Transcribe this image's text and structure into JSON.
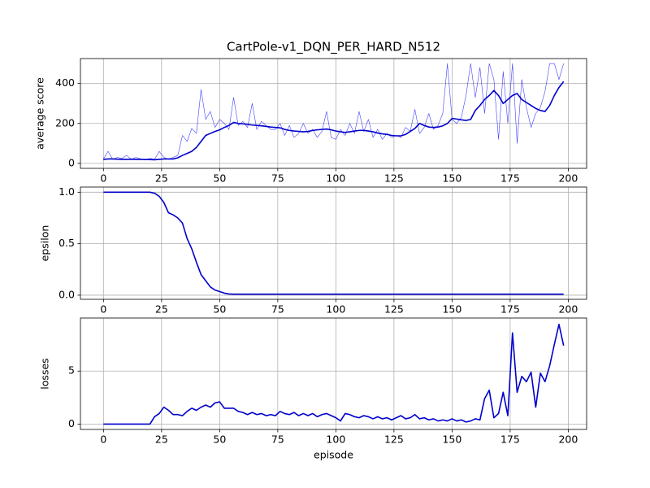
{
  "chart_data": [
    {
      "type": "line",
      "title": "CartPole-v1_DQN_PER_HARD_N512",
      "ylabel": "average score",
      "x": [
        0,
        2,
        4,
        6,
        8,
        10,
        12,
        14,
        16,
        18,
        20,
        22,
        24,
        26,
        28,
        30,
        32,
        34,
        36,
        38,
        40,
        42,
        44,
        46,
        48,
        50,
        52,
        54,
        56,
        58,
        60,
        62,
        64,
        66,
        68,
        70,
        72,
        74,
        76,
        78,
        80,
        82,
        84,
        86,
        88,
        90,
        92,
        94,
        96,
        98,
        100,
        102,
        104,
        106,
        108,
        110,
        112,
        114,
        116,
        118,
        120,
        122,
        124,
        126,
        128,
        130,
        132,
        134,
        136,
        138,
        140,
        142,
        144,
        146,
        148,
        150,
        152,
        154,
        156,
        158,
        160,
        162,
        164,
        166,
        168,
        170,
        172,
        174,
        176,
        178,
        180,
        182,
        184,
        186,
        188,
        190,
        192,
        194,
        196,
        198
      ],
      "series": [
        {
          "color": "#0000ff",
          "linewidth": 0.6,
          "opacity": 0.75,
          "values": [
            22,
            60,
            20,
            30,
            25,
            40,
            20,
            30,
            22,
            18,
            25,
            20,
            60,
            30,
            20,
            30,
            40,
            140,
            110,
            175,
            150,
            370,
            220,
            260,
            180,
            220,
            200,
            170,
            330,
            190,
            210,
            180,
            300,
            170,
            210,
            190,
            170,
            170,
            200,
            140,
            190,
            130,
            150,
            200,
            150,
            170,
            130,
            160,
            260,
            130,
            120,
            170,
            140,
            200,
            150,
            260,
            160,
            220,
            130,
            170,
            120,
            150,
            130,
            140,
            130,
            180,
            160,
            270,
            150,
            180,
            250,
            170,
            190,
            250,
            500,
            220,
            200,
            230,
            340,
            500,
            330,
            480,
            250,
            500,
            420,
            120,
            460,
            200,
            500,
            100,
            420,
            280,
            180,
            250,
            280,
            360,
            500,
            500,
            420,
            500
          ]
        },
        {
          "color": "#0000cc",
          "linewidth": 1.6,
          "opacity": 1,
          "values": [
            20,
            22,
            22,
            21,
            20,
            20,
            21,
            20,
            20,
            19,
            19,
            18,
            20,
            22,
            22,
            22,
            28,
            40,
            50,
            60,
            80,
            110,
            140,
            150,
            160,
            168,
            180,
            190,
            205,
            200,
            198,
            195,
            192,
            190,
            188,
            185,
            182,
            180,
            178,
            170,
            165,
            162,
            160,
            158,
            160,
            165,
            168,
            170,
            172,
            168,
            162,
            158,
            155,
            158,
            162,
            165,
            165,
            162,
            158,
            152,
            148,
            145,
            140,
            138,
            138,
            145,
            160,
            175,
            200,
            190,
            182,
            180,
            182,
            188,
            200,
            225,
            222,
            218,
            215,
            220,
            265,
            290,
            320,
            340,
            365,
            340,
            300,
            320,
            340,
            350,
            320,
            305,
            290,
            275,
            265,
            260,
            290,
            340,
            380,
            410
          ]
        }
      ],
      "xlim": [
        -9.9,
        207.9
      ],
      "xticks": [
        0,
        25,
        50,
        75,
        100,
        125,
        150,
        175,
        200
      ],
      "ylim": [
        -25,
        525
      ],
      "yticks": [
        0,
        200,
        400
      ],
      "grid": true
    },
    {
      "type": "line",
      "ylabel": "epsilon",
      "x": [
        0,
        2,
        4,
        6,
        8,
        10,
        12,
        14,
        16,
        18,
        20,
        22,
        24,
        26,
        28,
        30,
        32,
        34,
        36,
        38,
        40,
        42,
        44,
        46,
        48,
        50,
        52,
        54,
        56,
        58,
        60,
        62,
        64,
        66,
        68,
        70,
        72,
        74,
        76,
        78,
        80,
        82,
        84,
        86,
        88,
        90,
        92,
        94,
        96,
        98,
        100,
        102,
        104,
        106,
        108,
        110,
        112,
        114,
        116,
        118,
        120,
        122,
        124,
        126,
        128,
        130,
        132,
        134,
        136,
        138,
        140,
        142,
        144,
        146,
        148,
        150,
        152,
        154,
        156,
        158,
        160,
        162,
        164,
        166,
        168,
        170,
        172,
        174,
        176,
        178,
        180,
        182,
        184,
        186,
        188,
        190,
        192,
        194,
        196,
        198
      ],
      "series": [
        {
          "color": "#0000cc",
          "linewidth": 1.6,
          "opacity": 1,
          "values": [
            1,
            1,
            1,
            1,
            1,
            1,
            1,
            1,
            1,
            1,
            1,
            0.99,
            0.96,
            0.9,
            0.8,
            0.78,
            0.75,
            0.7,
            0.55,
            0.45,
            0.32,
            0.2,
            0.14,
            0.08,
            0.05,
            0.035,
            0.02,
            0.012,
            0.01,
            0.01,
            0.01,
            0.01,
            0.01,
            0.01,
            0.01,
            0.01,
            0.01,
            0.01,
            0.01,
            0.01,
            0.01,
            0.01,
            0.01,
            0.01,
            0.01,
            0.01,
            0.01,
            0.01,
            0.01,
            0.01,
            0.01,
            0.01,
            0.01,
            0.01,
            0.01,
            0.01,
            0.01,
            0.01,
            0.01,
            0.01,
            0.01,
            0.01,
            0.01,
            0.01,
            0.01,
            0.01,
            0.01,
            0.01,
            0.01,
            0.01,
            0.01,
            0.01,
            0.01,
            0.01,
            0.01,
            0.01,
            0.01,
            0.01,
            0.01,
            0.01,
            0.01,
            0.01,
            0.01,
            0.01,
            0.01,
            0.01,
            0.01,
            0.01,
            0.01,
            0.01,
            0.01,
            0.01,
            0.01,
            0.01,
            0.01,
            0.01,
            0.01,
            0.01,
            0.01,
            0.01
          ]
        }
      ],
      "xlim": [
        -9.9,
        207.9
      ],
      "xticks": [
        0,
        25,
        50,
        75,
        100,
        125,
        150,
        175,
        200
      ],
      "ylim": [
        -0.04,
        1.05
      ],
      "yticks": [
        {
          "value": 0,
          "label": "0.0"
        },
        0.5,
        {
          "value": 1,
          "label": "1.0"
        }
      ],
      "grid": true
    },
    {
      "type": "line",
      "ylabel": "losses",
      "xlabel": "episode",
      "x": [
        0,
        2,
        4,
        6,
        8,
        10,
        12,
        14,
        16,
        18,
        20,
        22,
        24,
        26,
        28,
        30,
        32,
        34,
        36,
        38,
        40,
        42,
        44,
        46,
        48,
        50,
        52,
        54,
        56,
        58,
        60,
        62,
        64,
        66,
        68,
        70,
        72,
        74,
        76,
        78,
        80,
        82,
        84,
        86,
        88,
        90,
        92,
        94,
        96,
        98,
        100,
        102,
        104,
        106,
        108,
        110,
        112,
        114,
        116,
        118,
        120,
        122,
        124,
        126,
        128,
        130,
        132,
        134,
        136,
        138,
        140,
        142,
        144,
        146,
        148,
        150,
        152,
        154,
        156,
        158,
        160,
        162,
        164,
        166,
        168,
        170,
        172,
        174,
        176,
        178,
        180,
        182,
        184,
        186,
        188,
        190,
        192,
        194,
        196,
        198
      ],
      "series": [
        {
          "color": "#0000cc",
          "linewidth": 1.6,
          "opacity": 1,
          "values": [
            0,
            0,
            0,
            0,
            0,
            0,
            0,
            0,
            0,
            0,
            0,
            0.7,
            1.0,
            1.6,
            1.3,
            0.9,
            0.9,
            0.8,
            1.2,
            1.5,
            1.3,
            1.6,
            1.8,
            1.6,
            2.0,
            2.1,
            1.5,
            1.5,
            1.5,
            1.2,
            1.1,
            0.9,
            1.1,
            0.9,
            1.0,
            0.8,
            0.9,
            0.8,
            1.2,
            1.0,
            0.9,
            1.1,
            0.8,
            1.0,
            0.8,
            1.0,
            0.7,
            0.9,
            1.0,
            0.8,
            0.6,
            0.3,
            1.0,
            0.9,
            0.7,
            0.6,
            0.8,
            0.7,
            0.5,
            0.7,
            0.5,
            0.6,
            0.4,
            0.6,
            0.8,
            0.5,
            0.6,
            0.9,
            0.5,
            0.6,
            0.4,
            0.5,
            0.3,
            0.4,
            0.3,
            0.5,
            0.3,
            0.4,
            0.2,
            0.3,
            0.5,
            0.4,
            2.4,
            3.2,
            0.6,
            1.0,
            3.0,
            0.8,
            8.6,
            3.0,
            4.5,
            4.0,
            4.9,
            1.6,
            4.8,
            4.0,
            5.5,
            7.5,
            9.4,
            7.4
          ]
        }
      ],
      "xlim": [
        -9.9,
        207.9
      ],
      "xticks": [
        0,
        25,
        50,
        75,
        100,
        125,
        150,
        175,
        200
      ],
      "ylim": [
        -0.5,
        10.0
      ],
      "yticks": [
        0,
        5
      ],
      "grid": true
    }
  ]
}
